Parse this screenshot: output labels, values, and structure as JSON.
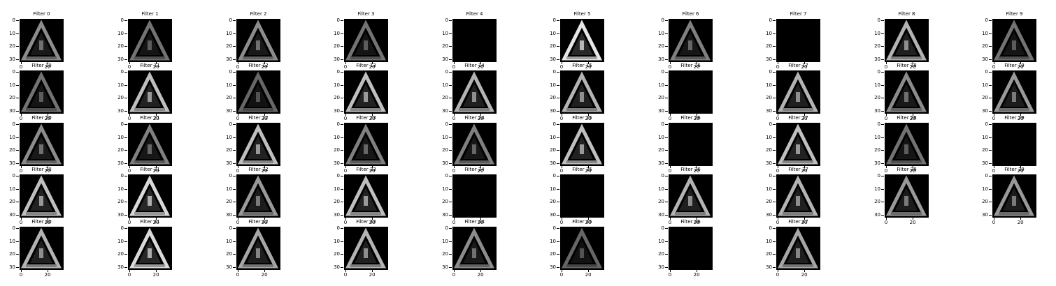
{
  "figure": {
    "background": "#ffffff",
    "panel_colormap": "gray",
    "x_tick_labels": [
      "0",
      "20"
    ],
    "y_tick_labels": [
      "0",
      "10",
      "20",
      "30"
    ],
    "panels": [
      {
        "title": "Filter 0",
        "intensity": 0.55
      },
      {
        "title": "Filter 1",
        "intensity": 0.45
      },
      {
        "title": "Filter 2",
        "intensity": 0.55
      },
      {
        "title": "Filter 3",
        "intensity": 0.45
      },
      {
        "title": "Filter 4",
        "intensity": 0.0
      },
      {
        "title": "Filter 5",
        "intensity": 0.9
      },
      {
        "title": "Filter 6",
        "intensity": 0.5
      },
      {
        "title": "Filter 7",
        "intensity": 0.0
      },
      {
        "title": "Filter 8",
        "intensity": 0.7
      },
      {
        "title": "Filter 9",
        "intensity": 0.45
      },
      {
        "title": "Filter 10",
        "intensity": 0.45
      },
      {
        "title": "Filter 11",
        "intensity": 0.75
      },
      {
        "title": "Filter 12",
        "intensity": 0.4
      },
      {
        "title": "Filter 13",
        "intensity": 0.75
      },
      {
        "title": "Filter 14",
        "intensity": 0.7
      },
      {
        "title": "Filter 15",
        "intensity": 0.7
      },
      {
        "title": "Filter 16",
        "intensity": 0.0
      },
      {
        "title": "Filter 17",
        "intensity": 0.7
      },
      {
        "title": "Filter 18",
        "intensity": 0.55
      },
      {
        "title": "Filter 19",
        "intensity": 0.6
      },
      {
        "title": "Filter 20",
        "intensity": 0.55
      },
      {
        "title": "Filter 21",
        "intensity": 0.5
      },
      {
        "title": "Filter 22",
        "intensity": 0.75
      },
      {
        "title": "Filter 23",
        "intensity": 0.5
      },
      {
        "title": "Filter 24",
        "intensity": 0.5
      },
      {
        "title": "Filter 25",
        "intensity": 0.75
      },
      {
        "title": "Filter 26",
        "intensity": 0.0
      },
      {
        "title": "Filter 27",
        "intensity": 0.75
      },
      {
        "title": "Filter 28",
        "intensity": 0.45
      },
      {
        "title": "Filter 29",
        "intensity": 0.0
      },
      {
        "title": "Filter 30",
        "intensity": 0.75
      },
      {
        "title": "Filter 31",
        "intensity": 0.85
      },
      {
        "title": "Filter 32",
        "intensity": 0.6
      },
      {
        "title": "Filter 33",
        "intensity": 0.75
      },
      {
        "title": "Filter 34",
        "intensity": 0.0
      },
      {
        "title": "Filter 35",
        "intensity": 0.0
      },
      {
        "title": "Filter 36",
        "intensity": 0.7
      },
      {
        "title": "Filter 37",
        "intensity": 0.7
      },
      {
        "title": "Filter 38",
        "intensity": 0.6
      },
      {
        "title": "Filter 39",
        "intensity": 0.6
      },
      {
        "title": "Filter 40",
        "intensity": 0.7
      },
      {
        "title": "Filter 41",
        "intensity": 0.85
      },
      {
        "title": "Filter 42",
        "intensity": 0.65
      },
      {
        "title": "Filter 43",
        "intensity": 0.7
      },
      {
        "title": "Filter 44",
        "intensity": 0.55
      },
      {
        "title": "Filter 45",
        "intensity": 0.4
      },
      {
        "title": "Filter 46",
        "intensity": 0.0
      },
      {
        "title": "Filter 47",
        "intensity": 0.65
      }
    ]
  }
}
